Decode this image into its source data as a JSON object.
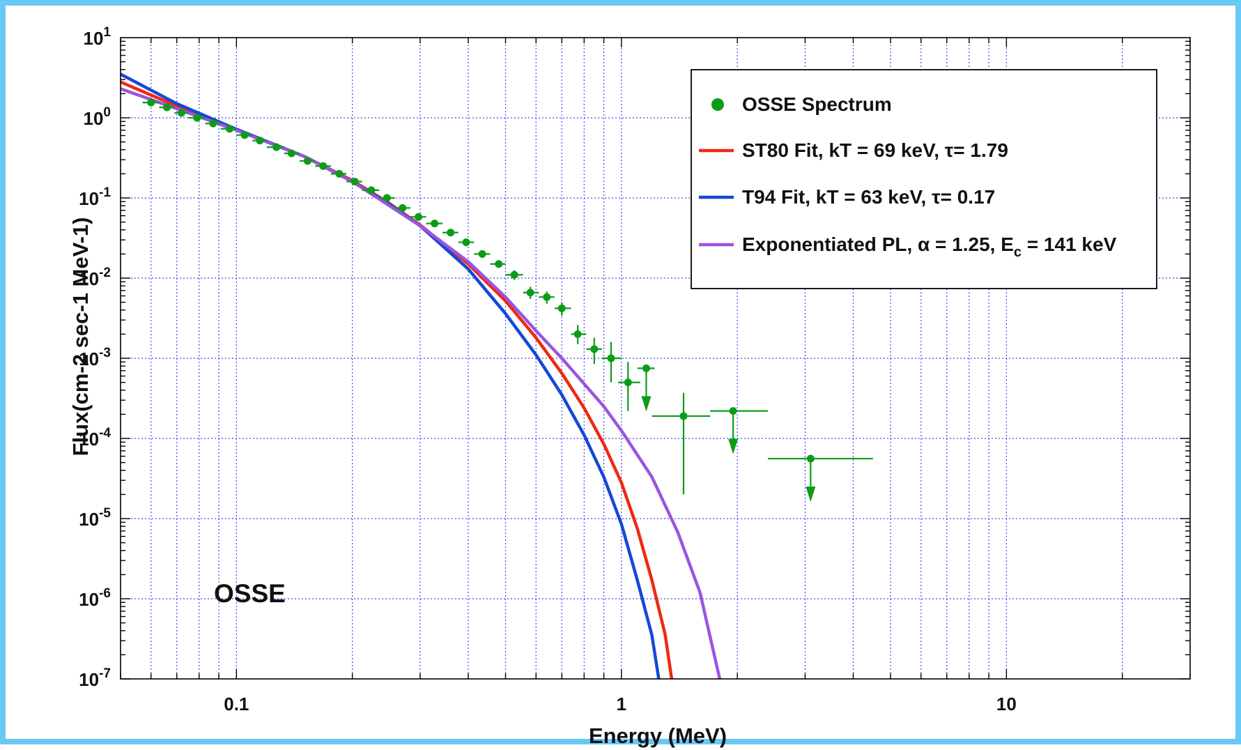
{
  "chart_data": {
    "type": "line",
    "title": "",
    "xlabel": "Energy (MeV)",
    "ylabel": "Flux(cm-2 sec-1 MeV-1)",
    "xscale": "log",
    "yscale": "log",
    "xlim": [
      0.05,
      30
    ],
    "ylim": [
      1e-07,
      10
    ],
    "grid": true,
    "legend_position": "top-right",
    "annotation": "OSSE",
    "x_ticks": [
      {
        "value": 0.1,
        "label": "0.1"
      },
      {
        "value": 1,
        "label": "1"
      },
      {
        "value": 10,
        "label": "10"
      }
    ],
    "y_ticks": [
      {
        "value": 10,
        "base": "10",
        "exp": "1"
      },
      {
        "value": 1,
        "base": "10",
        "exp": "0"
      },
      {
        "value": 0.1,
        "base": "10",
        "exp": "-1"
      },
      {
        "value": 0.01,
        "base": "10",
        "exp": "-2"
      },
      {
        "value": 0.001,
        "base": "10",
        "exp": "-3"
      },
      {
        "value": 0.0001,
        "base": "10",
        "exp": "-4"
      },
      {
        "value": 1e-05,
        "base": "10",
        "exp": "-5"
      },
      {
        "value": 1e-06,
        "base": "10",
        "exp": "-6"
      },
      {
        "value": 1e-07,
        "base": "10",
        "exp": "-7"
      }
    ],
    "legend": [
      {
        "label": "OSSE Spectrum",
        "marker": "dot",
        "color": "#0c9c18"
      },
      {
        "label": "ST80 Fit, kT = 69 keV, τ= 1.79",
        "marker": "line",
        "color": "#ee2a12"
      },
      {
        "label": "T94 Fit, kT = 63 keV, τ= 0.17",
        "marker": "line",
        "color": "#1448d6"
      },
      {
        "label": "Exponentiated PL, α = 1.25, E",
        "sub": "c",
        "suffix": " = 141 keV",
        "marker": "line",
        "color": "#9a55e0"
      }
    ],
    "series": [
      {
        "name": "ST80 Fit, kT = 69 keV, τ= 1.79",
        "color": "#ee2a12",
        "points": [
          [
            0.05,
            2.8
          ],
          [
            0.07,
            1.4
          ],
          [
            0.1,
            0.72
          ],
          [
            0.15,
            0.33
          ],
          [
            0.2,
            0.165
          ],
          [
            0.25,
            0.085
          ],
          [
            0.3,
            0.046
          ],
          [
            0.4,
            0.015
          ],
          [
            0.5,
            0.0052
          ],
          [
            0.6,
            0.0018
          ],
          [
            0.7,
            0.00065
          ],
          [
            0.8,
            0.00024
          ],
          [
            0.9,
            8.5e-05
          ],
          [
            1.0,
            2.8e-05
          ],
          [
            1.1,
            7.5e-06
          ],
          [
            1.2,
            1.7e-06
          ],
          [
            1.3,
            3.5e-07
          ],
          [
            1.35,
            1e-07
          ]
        ]
      },
      {
        "name": "T94 Fit, kT = 63 keV, τ= 0.17",
        "color": "#1448d6",
        "points": [
          [
            0.05,
            3.5
          ],
          [
            0.07,
            1.5
          ],
          [
            0.1,
            0.72
          ],
          [
            0.15,
            0.33
          ],
          [
            0.2,
            0.16
          ],
          [
            0.25,
            0.083
          ],
          [
            0.3,
            0.045
          ],
          [
            0.4,
            0.013
          ],
          [
            0.5,
            0.0036
          ],
          [
            0.6,
            0.0011
          ],
          [
            0.7,
            0.00035
          ],
          [
            0.8,
            0.00011
          ],
          [
            0.9,
            3.3e-05
          ],
          [
            1.0,
            8.5e-06
          ],
          [
            1.1,
            1.7e-06
          ],
          [
            1.2,
            3.5e-07
          ],
          [
            1.25,
            1e-07
          ]
        ]
      },
      {
        "name": "Exponentiated PL, α = 1.25, E_c = 141 keV",
        "color": "#9a55e0",
        "points": [
          [
            0.05,
            2.3
          ],
          [
            0.07,
            1.3
          ],
          [
            0.1,
            0.7
          ],
          [
            0.15,
            0.33
          ],
          [
            0.2,
            0.16
          ],
          [
            0.3,
            0.045
          ],
          [
            0.4,
            0.016
          ],
          [
            0.5,
            0.0058
          ],
          [
            0.6,
            0.0022
          ],
          [
            0.7,
            0.001
          ],
          [
            0.8,
            0.00048
          ],
          [
            0.9,
            0.00025
          ],
          [
            1.0,
            0.000125
          ],
          [
            1.2,
            3.3e-05
          ],
          [
            1.4,
            6.8e-06
          ],
          [
            1.6,
            1.2e-06
          ],
          [
            1.8,
            1e-07
          ]
        ]
      }
    ],
    "data_points": {
      "name": "OSSE Spectrum",
      "color": "#0c9c18",
      "points": [
        {
          "x": 0.06,
          "y": 1.55,
          "xerr": [
            0.057,
            0.063
          ],
          "yerr": [
            1.5,
            1.6
          ]
        },
        {
          "x": 0.066,
          "y": 1.35,
          "xerr": [
            0.063,
            0.069
          ],
          "yerr": [
            1.3,
            1.4
          ]
        },
        {
          "x": 0.072,
          "y": 1.15,
          "xerr": [
            0.069,
            0.075
          ],
          "yerr": [
            1.1,
            1.2
          ]
        },
        {
          "x": 0.079,
          "y": 1.0,
          "xerr": [
            0.075,
            0.083
          ],
          "yerr": [
            0.97,
            1.03
          ]
        },
        {
          "x": 0.087,
          "y": 0.85,
          "xerr": [
            0.083,
            0.091
          ],
          "yerr": [
            0.82,
            0.88
          ]
        },
        {
          "x": 0.096,
          "y": 0.73,
          "xerr": [
            0.091,
            0.1
          ],
          "yerr": [
            0.7,
            0.76
          ]
        },
        {
          "x": 0.105,
          "y": 0.61,
          "xerr": [
            0.1,
            0.11
          ],
          "yerr": [
            0.59,
            0.63
          ]
        },
        {
          "x": 0.115,
          "y": 0.52,
          "xerr": [
            0.11,
            0.12
          ],
          "yerr": [
            0.5,
            0.54
          ]
        },
        {
          "x": 0.127,
          "y": 0.43,
          "xerr": [
            0.12,
            0.133
          ],
          "yerr": [
            0.41,
            0.45
          ]
        },
        {
          "x": 0.139,
          "y": 0.36,
          "xerr": [
            0.133,
            0.146
          ],
          "yerr": [
            0.345,
            0.375
          ]
        },
        {
          "x": 0.153,
          "y": 0.29,
          "xerr": [
            0.146,
            0.16
          ],
          "yerr": [
            0.28,
            0.3
          ]
        },
        {
          "x": 0.168,
          "y": 0.25,
          "xerr": [
            0.16,
            0.176
          ],
          "yerr": [
            0.24,
            0.26
          ]
        },
        {
          "x": 0.185,
          "y": 0.2,
          "xerr": [
            0.176,
            0.193
          ],
          "yerr": [
            0.19,
            0.21
          ]
        },
        {
          "x": 0.203,
          "y": 0.16,
          "xerr": [
            0.193,
            0.212
          ],
          "yerr": [
            0.152,
            0.168
          ]
        },
        {
          "x": 0.224,
          "y": 0.125,
          "xerr": [
            0.212,
            0.235
          ],
          "yerr": [
            0.118,
            0.132
          ]
        },
        {
          "x": 0.246,
          "y": 0.1,
          "xerr": [
            0.235,
            0.258
          ],
          "yerr": [
            0.094,
            0.106
          ]
        },
        {
          "x": 0.27,
          "y": 0.075,
          "xerr": [
            0.258,
            0.283
          ],
          "yerr": [
            0.07,
            0.08
          ]
        },
        {
          "x": 0.297,
          "y": 0.058,
          "xerr": [
            0.283,
            0.311
          ],
          "yerr": [
            0.054,
            0.062
          ]
        },
        {
          "x": 0.327,
          "y": 0.048,
          "xerr": [
            0.311,
            0.343
          ],
          "yerr": [
            0.044,
            0.052
          ]
        },
        {
          "x": 0.36,
          "y": 0.037,
          "xerr": [
            0.343,
            0.377
          ],
          "yerr": [
            0.034,
            0.04
          ]
        },
        {
          "x": 0.395,
          "y": 0.028,
          "xerr": [
            0.377,
            0.414
          ],
          "yerr": [
            0.025,
            0.031
          ]
        },
        {
          "x": 0.435,
          "y": 0.02,
          "xerr": [
            0.414,
            0.456
          ],
          "yerr": [
            0.018,
            0.022
          ]
        },
        {
          "x": 0.48,
          "y": 0.015,
          "xerr": [
            0.456,
            0.5
          ],
          "yerr": [
            0.0135,
            0.0165
          ]
        },
        {
          "x": 0.527,
          "y": 0.011,
          "xerr": [
            0.5,
            0.555
          ],
          "yerr": [
            0.0095,
            0.0125
          ]
        },
        {
          "x": 0.58,
          "y": 0.0066,
          "xerr": [
            0.555,
            0.61
          ],
          "yerr": [
            0.0055,
            0.0078
          ]
        },
        {
          "x": 0.64,
          "y": 0.0058,
          "xerr": [
            0.61,
            0.67
          ],
          "yerr": [
            0.0048,
            0.0068
          ]
        },
        {
          "x": 0.7,
          "y": 0.0042,
          "xerr": [
            0.67,
            0.74
          ],
          "yerr": [
            0.0034,
            0.005
          ]
        },
        {
          "x": 0.77,
          "y": 0.002,
          "xerr": [
            0.74,
            0.81
          ],
          "yerr": [
            0.0015,
            0.0026
          ]
        },
        {
          "x": 0.85,
          "y": 0.0013,
          "xerr": [
            0.81,
            0.89
          ],
          "yerr": [
            0.00085,
            0.0018
          ]
        },
        {
          "x": 0.94,
          "y": 0.001,
          "xerr": [
            0.89,
            1.0
          ],
          "yerr": [
            0.0005,
            0.0016
          ]
        },
        {
          "x": 1.04,
          "y": 0.0005,
          "xerr": [
            0.98,
            1.12
          ],
          "yerr": [
            0.00022,
            0.0009
          ]
        },
        {
          "x": 1.16,
          "y": 0.00075,
          "xerr": [
            1.1,
            1.22
          ],
          "upper_limit": true
        },
        {
          "x": 1.45,
          "y": 0.00019,
          "xerr": [
            1.2,
            1.7
          ],
          "yerr": [
            2e-05,
            0.00037
          ]
        },
        {
          "x": 1.95,
          "y": 0.00022,
          "xerr": [
            1.7,
            2.4
          ],
          "upper_limit": true
        },
        {
          "x": 3.1,
          "y": 5.6e-05,
          "xerr": [
            2.4,
            4.5
          ],
          "upper_limit": true
        }
      ]
    }
  }
}
